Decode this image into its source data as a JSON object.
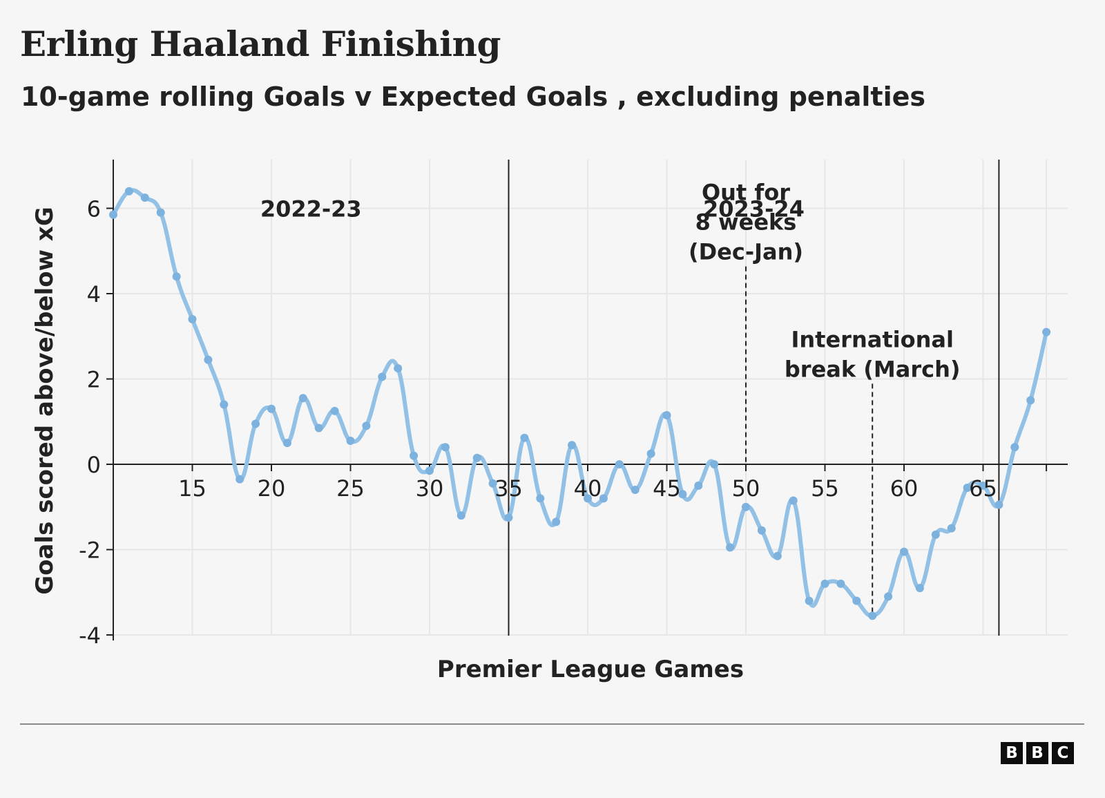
{
  "header": {
    "title": "Erling Haaland Finishing",
    "subtitle": "10-game rolling Goals v Expected Goals , excluding penalties"
  },
  "footer": {
    "logo_letters": [
      "B",
      "B",
      "C"
    ]
  },
  "colors": {
    "line": "#93c1e6",
    "marker": "#7cb2dd",
    "background": "#f6f6f6",
    "grid": "#e6e6e6",
    "axis": "#222222"
  },
  "chart_data": {
    "type": "line",
    "title": "Erling Haaland Finishing",
    "subtitle": "10-game rolling Goals v Expected Goals , excluding penalties",
    "xlabel": "Premier League Games",
    "ylabel": "Goals scored above/below xG",
    "xlim": [
      10,
      70
    ],
    "ylim": [
      -4,
      7
    ],
    "x_ticks": [
      15,
      20,
      25,
      30,
      35,
      40,
      45,
      50,
      55,
      60,
      65
    ],
    "y_ticks": [
      -4,
      -2,
      0,
      2,
      4,
      6
    ],
    "y_tick_labels": [
      "-4",
      "-2",
      "0",
      "2",
      "4",
      "6"
    ],
    "grid": true,
    "season_dividers": [
      35,
      66
    ],
    "season_labels": [
      {
        "label": "2022-23",
        "x": 22.5,
        "y": 6
      },
      {
        "label": "2023-24",
        "x": 50.5,
        "y": 6
      }
    ],
    "annotations": [
      {
        "lines": [
          "Out for",
          "8 weeks",
          "(Dec-Jan)"
        ],
        "x": 50,
        "y": 4.8,
        "line_to_y": 0
      },
      {
        "lines": [
          "International",
          "break (March)"
        ],
        "x": 58,
        "y": 2.05,
        "line_to_y": -3.55
      }
    ],
    "series": [
      {
        "x": [
          10,
          11,
          12,
          13,
          14,
          15,
          16,
          17,
          18,
          19,
          20,
          21,
          22,
          23,
          24,
          25,
          26,
          27,
          28,
          29,
          30,
          31,
          32,
          33,
          34,
          35,
          36,
          37,
          38,
          39,
          40,
          41,
          42,
          43,
          44,
          45,
          46,
          47,
          48,
          49,
          50,
          51,
          52,
          53,
          54,
          55,
          56,
          57,
          58,
          59,
          60,
          61,
          62,
          63,
          64,
          65,
          66,
          67,
          68,
          69
        ],
        "values": [
          5.85,
          6.4,
          6.25,
          5.9,
          4.4,
          3.4,
          2.45,
          1.4,
          -0.35,
          0.95,
          1.3,
          0.5,
          1.55,
          0.85,
          1.25,
          0.55,
          0.9,
          2.05,
          2.25,
          0.2,
          -0.15,
          0.4,
          -1.2,
          0.15,
          -0.45,
          -1.25,
          0.62,
          -0.8,
          -1.35,
          0.45,
          -0.8,
          -0.8,
          0.0,
          -0.6,
          0.25,
          1.15,
          -0.7,
          -0.5,
          0.0,
          -1.95,
          -1.0,
          -1.55,
          -2.15,
          -0.85,
          -3.2,
          -2.8,
          -2.8,
          -3.2,
          -3.55,
          -3.1,
          -2.05,
          -2.9,
          -1.65,
          -1.5,
          -0.55,
          -0.5,
          -0.95,
          0.4,
          1.5,
          3.1
        ]
      }
    ]
  }
}
